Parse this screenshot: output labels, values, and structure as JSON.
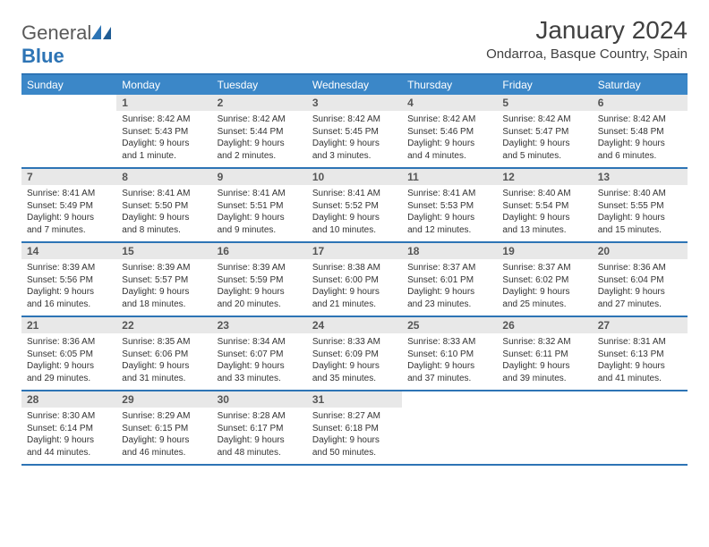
{
  "logo": {
    "general": "General",
    "blue": "Blue"
  },
  "title": "January 2024",
  "location": "Ondarroa, Basque Country, Spain",
  "colors": {
    "header_bg": "#3b87c8",
    "header_text": "#ffffff",
    "border": "#2d74b5",
    "daynum_bg": "#e8e8e8",
    "daynum_text": "#555555",
    "body_text": "#333333",
    "logo_gray": "#5a5a5a",
    "logo_blue": "#2d74b5",
    "page_bg": "#ffffff"
  },
  "dow": [
    "Sunday",
    "Monday",
    "Tuesday",
    "Wednesday",
    "Thursday",
    "Friday",
    "Saturday"
  ],
  "weeks": [
    [
      {
        "n": "",
        "sunrise": "",
        "sunset": "",
        "daylight": ""
      },
      {
        "n": "1",
        "sunrise": "Sunrise: 8:42 AM",
        "sunset": "Sunset: 5:43 PM",
        "daylight": "Daylight: 9 hours and 1 minute."
      },
      {
        "n": "2",
        "sunrise": "Sunrise: 8:42 AM",
        "sunset": "Sunset: 5:44 PM",
        "daylight": "Daylight: 9 hours and 2 minutes."
      },
      {
        "n": "3",
        "sunrise": "Sunrise: 8:42 AM",
        "sunset": "Sunset: 5:45 PM",
        "daylight": "Daylight: 9 hours and 3 minutes."
      },
      {
        "n": "4",
        "sunrise": "Sunrise: 8:42 AM",
        "sunset": "Sunset: 5:46 PM",
        "daylight": "Daylight: 9 hours and 4 minutes."
      },
      {
        "n": "5",
        "sunrise": "Sunrise: 8:42 AM",
        "sunset": "Sunset: 5:47 PM",
        "daylight": "Daylight: 9 hours and 5 minutes."
      },
      {
        "n": "6",
        "sunrise": "Sunrise: 8:42 AM",
        "sunset": "Sunset: 5:48 PM",
        "daylight": "Daylight: 9 hours and 6 minutes."
      }
    ],
    [
      {
        "n": "7",
        "sunrise": "Sunrise: 8:41 AM",
        "sunset": "Sunset: 5:49 PM",
        "daylight": "Daylight: 9 hours and 7 minutes."
      },
      {
        "n": "8",
        "sunrise": "Sunrise: 8:41 AM",
        "sunset": "Sunset: 5:50 PM",
        "daylight": "Daylight: 9 hours and 8 minutes."
      },
      {
        "n": "9",
        "sunrise": "Sunrise: 8:41 AM",
        "sunset": "Sunset: 5:51 PM",
        "daylight": "Daylight: 9 hours and 9 minutes."
      },
      {
        "n": "10",
        "sunrise": "Sunrise: 8:41 AM",
        "sunset": "Sunset: 5:52 PM",
        "daylight": "Daylight: 9 hours and 10 minutes."
      },
      {
        "n": "11",
        "sunrise": "Sunrise: 8:41 AM",
        "sunset": "Sunset: 5:53 PM",
        "daylight": "Daylight: 9 hours and 12 minutes."
      },
      {
        "n": "12",
        "sunrise": "Sunrise: 8:40 AM",
        "sunset": "Sunset: 5:54 PM",
        "daylight": "Daylight: 9 hours and 13 minutes."
      },
      {
        "n": "13",
        "sunrise": "Sunrise: 8:40 AM",
        "sunset": "Sunset: 5:55 PM",
        "daylight": "Daylight: 9 hours and 15 minutes."
      }
    ],
    [
      {
        "n": "14",
        "sunrise": "Sunrise: 8:39 AM",
        "sunset": "Sunset: 5:56 PM",
        "daylight": "Daylight: 9 hours and 16 minutes."
      },
      {
        "n": "15",
        "sunrise": "Sunrise: 8:39 AM",
        "sunset": "Sunset: 5:57 PM",
        "daylight": "Daylight: 9 hours and 18 minutes."
      },
      {
        "n": "16",
        "sunrise": "Sunrise: 8:39 AM",
        "sunset": "Sunset: 5:59 PM",
        "daylight": "Daylight: 9 hours and 20 minutes."
      },
      {
        "n": "17",
        "sunrise": "Sunrise: 8:38 AM",
        "sunset": "Sunset: 6:00 PM",
        "daylight": "Daylight: 9 hours and 21 minutes."
      },
      {
        "n": "18",
        "sunrise": "Sunrise: 8:37 AM",
        "sunset": "Sunset: 6:01 PM",
        "daylight": "Daylight: 9 hours and 23 minutes."
      },
      {
        "n": "19",
        "sunrise": "Sunrise: 8:37 AM",
        "sunset": "Sunset: 6:02 PM",
        "daylight": "Daylight: 9 hours and 25 minutes."
      },
      {
        "n": "20",
        "sunrise": "Sunrise: 8:36 AM",
        "sunset": "Sunset: 6:04 PM",
        "daylight": "Daylight: 9 hours and 27 minutes."
      }
    ],
    [
      {
        "n": "21",
        "sunrise": "Sunrise: 8:36 AM",
        "sunset": "Sunset: 6:05 PM",
        "daylight": "Daylight: 9 hours and 29 minutes."
      },
      {
        "n": "22",
        "sunrise": "Sunrise: 8:35 AM",
        "sunset": "Sunset: 6:06 PM",
        "daylight": "Daylight: 9 hours and 31 minutes."
      },
      {
        "n": "23",
        "sunrise": "Sunrise: 8:34 AM",
        "sunset": "Sunset: 6:07 PM",
        "daylight": "Daylight: 9 hours and 33 minutes."
      },
      {
        "n": "24",
        "sunrise": "Sunrise: 8:33 AM",
        "sunset": "Sunset: 6:09 PM",
        "daylight": "Daylight: 9 hours and 35 minutes."
      },
      {
        "n": "25",
        "sunrise": "Sunrise: 8:33 AM",
        "sunset": "Sunset: 6:10 PM",
        "daylight": "Daylight: 9 hours and 37 minutes."
      },
      {
        "n": "26",
        "sunrise": "Sunrise: 8:32 AM",
        "sunset": "Sunset: 6:11 PM",
        "daylight": "Daylight: 9 hours and 39 minutes."
      },
      {
        "n": "27",
        "sunrise": "Sunrise: 8:31 AM",
        "sunset": "Sunset: 6:13 PM",
        "daylight": "Daylight: 9 hours and 41 minutes."
      }
    ],
    [
      {
        "n": "28",
        "sunrise": "Sunrise: 8:30 AM",
        "sunset": "Sunset: 6:14 PM",
        "daylight": "Daylight: 9 hours and 44 minutes."
      },
      {
        "n": "29",
        "sunrise": "Sunrise: 8:29 AM",
        "sunset": "Sunset: 6:15 PM",
        "daylight": "Daylight: 9 hours and 46 minutes."
      },
      {
        "n": "30",
        "sunrise": "Sunrise: 8:28 AM",
        "sunset": "Sunset: 6:17 PM",
        "daylight": "Daylight: 9 hours and 48 minutes."
      },
      {
        "n": "31",
        "sunrise": "Sunrise: 8:27 AM",
        "sunset": "Sunset: 6:18 PM",
        "daylight": "Daylight: 9 hours and 50 minutes."
      },
      {
        "n": "",
        "sunrise": "",
        "sunset": "",
        "daylight": ""
      },
      {
        "n": "",
        "sunrise": "",
        "sunset": "",
        "daylight": ""
      },
      {
        "n": "",
        "sunrise": "",
        "sunset": "",
        "daylight": ""
      }
    ]
  ]
}
